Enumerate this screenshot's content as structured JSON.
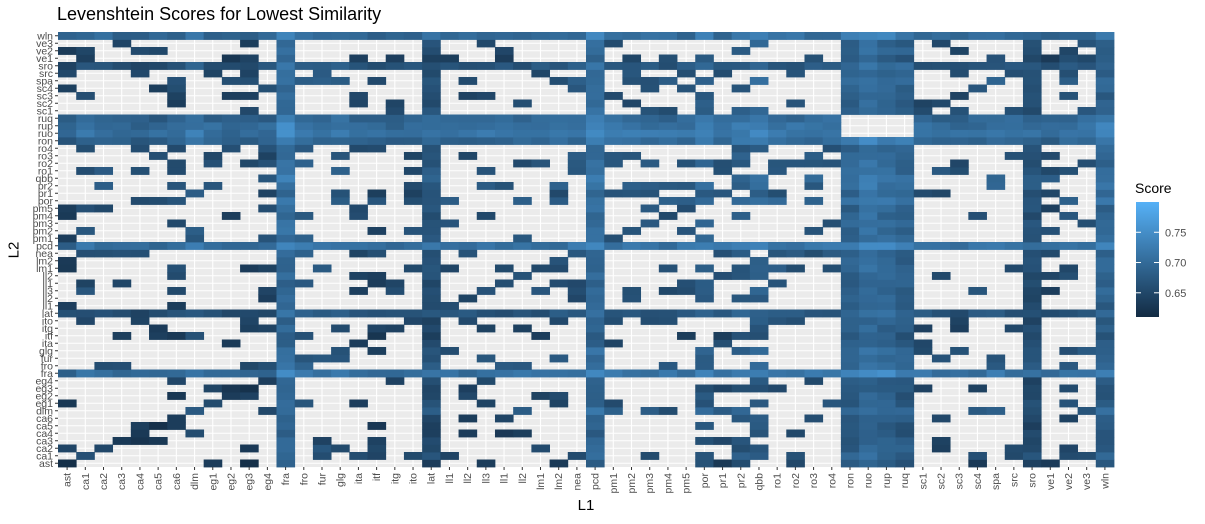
{
  "chart_data": {
    "type": "heatmap",
    "title": "Levenshtein Scores for Lowest Similarity",
    "xlabel": "L1",
    "ylabel": "L2",
    "legend_title": "Score",
    "legend_ticks": [
      "0.75",
      "0.70",
      "0.65"
    ],
    "legend_tick_values": [
      0.75,
      0.7,
      0.65
    ],
    "colorbar_range": [
      0.61,
      0.8
    ],
    "color_low": "#132b43",
    "color_high": "#56b1f7",
    "background": "#ebebeb",
    "x_categories": [
      "ast",
      "ca1",
      "ca2",
      "ca3",
      "ca4",
      "ca5",
      "ca6",
      "dlm",
      "eg1",
      "eg2",
      "eg3",
      "eg4",
      "fra",
      "fro",
      "fur",
      "glg",
      "ita",
      "itf",
      "itg",
      "ito",
      "lat",
      "ll1",
      "ll2",
      "ll3",
      "lli",
      "lli2",
      "lm1",
      "lm2",
      "nea",
      "pcd",
      "pm1",
      "pm2",
      "pm3",
      "pm4",
      "pm5",
      "por",
      "pr1",
      "pr2",
      "qbb",
      "ro1",
      "ro2",
      "ro3",
      "ro4",
      "ron",
      "ruo",
      "rup",
      "ruq",
      "sc1",
      "sc2",
      "sc3",
      "sc4",
      "spa",
      "src",
      "sro",
      "ve1",
      "ve2",
      "ve3",
      "wln"
    ],
    "x_tick_labels": [
      "ast",
      "ca1",
      "ca2",
      "ca3",
      "ca4",
      "ca5",
      "ca6",
      "dlm",
      "eg1",
      "eg2",
      "eg3",
      "eg4",
      "fra",
      "fro",
      "fur",
      "glg",
      "ita",
      "itf",
      "itg",
      "ito",
      "lat",
      "ll1",
      "ll2",
      "ll3",
      "ll1",
      "ll2",
      "lm1",
      "lm2",
      "nea",
      "pcd",
      "pm1",
      "pm2",
      "pm3",
      "pm4",
      "pm5",
      "por",
      "pr1",
      "pr2",
      "qbb",
      "ro1",
      "ro2",
      "ro3",
      "ro4",
      "ron",
      "ruo",
      "rup",
      "ruq",
      "sc1",
      "sc2",
      "sc3",
      "sc4",
      "spa",
      "src",
      "sro",
      "ve1",
      "ve2",
      "ve3",
      "wln"
    ],
    "y_categories": [
      "ast",
      "ca1",
      "ca2",
      "ca3",
      "ca4",
      "ca5",
      "ca6",
      "dlm",
      "eg1",
      "eg2",
      "eg3",
      "eg4",
      "fra",
      "fro",
      "fur",
      "glg",
      "ita",
      "itf",
      "itg",
      "ito",
      "lat",
      "ll1",
      "ll2",
      "ll3",
      "lli",
      "lli2",
      "lm1",
      "lm2",
      "nea",
      "pcd",
      "pm1",
      "pm2",
      "pm3",
      "pm4",
      "pm5",
      "por",
      "pr1",
      "pr2",
      "qbb",
      "ro1",
      "ro2",
      "ro3",
      "ro4",
      "ron",
      "ruo",
      "rup",
      "ruq",
      "sc1",
      "sc2",
      "sc3",
      "sc4",
      "spa",
      "src",
      "sro",
      "ve1",
      "ve2",
      "ve3",
      "wln"
    ],
    "y_tick_labels": [
      "ast",
      "ca1",
      "ca2",
      "ca3",
      "ca4",
      "ca5",
      "ca6",
      "dlm",
      "eg1",
      "eg2",
      "eg3",
      "eg4",
      "fra",
      "fro",
      "fur",
      "glg",
      "ita",
      "itf",
      "itg",
      "ito",
      "lat",
      "ll1",
      "ll2",
      "ll3",
      "ll1",
      "ll2",
      "lm1",
      "lm2",
      "nea",
      "pcd",
      "pm1",
      "pm2",
      "pm3",
      "pm4",
      "pm5",
      "por",
      "pr1",
      "pr2",
      "qbb",
      "ro1",
      "ro2",
      "ro3",
      "ro4",
      "ron",
      "ruo",
      "rup",
      "ruq",
      "sc1",
      "sc2",
      "sc3",
      "sc4",
      "spa",
      "src",
      "sro",
      "ve1",
      "ve2",
      "ve3",
      "wln"
    ],
    "column_base_values": [
      0.62,
      0.66,
      0.65,
      0.64,
      0.63,
      0.63,
      0.64,
      0.68,
      0.65,
      0.63,
      0.63,
      0.64,
      0.74,
      0.68,
      0.67,
      0.67,
      0.64,
      0.63,
      0.64,
      0.64,
      0.66,
      0.65,
      0.65,
      0.66,
      0.65,
      0.66,
      0.66,
      0.66,
      0.67,
      0.74,
      0.67,
      0.67,
      0.67,
      0.66,
      0.66,
      0.7,
      0.66,
      0.69,
      0.71,
      0.68,
      0.67,
      0.67,
      0.67,
      0.71,
      0.75,
      0.73,
      0.71,
      0.66,
      0.65,
      0.65,
      0.66,
      0.68,
      0.66,
      0.66,
      0.64,
      0.66,
      0.66,
      0.72
    ],
    "hub_rows": [
      "wln",
      "sro",
      "ruq",
      "rup",
      "ruo",
      "ron",
      "pcd",
      "lat",
      "fra"
    ],
    "sparse_rows": [
      "ve2",
      "ve3",
      "pm1",
      "pm2",
      "pm3",
      "pm4",
      "pm5",
      "ll1",
      "ll2",
      "lm2",
      "ita",
      "eg2",
      "eg3",
      "eg4",
      "ca4",
      "ca5",
      "ca6"
    ],
    "blank_block": {
      "rows": [
        "ruq",
        "rup",
        "ruo"
      ],
      "columns": [
        "ron",
        "ruo",
        "rup",
        "ruq"
      ]
    }
  }
}
